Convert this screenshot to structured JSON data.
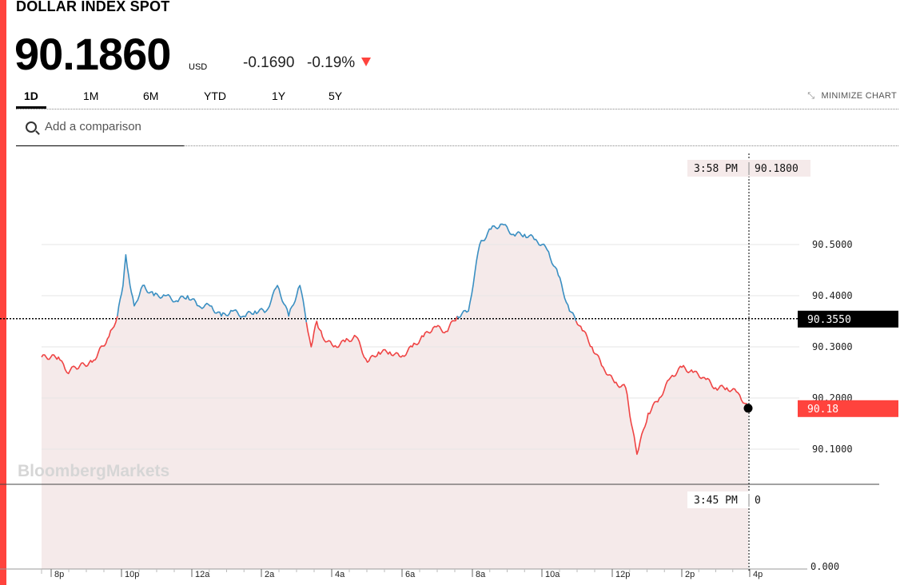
{
  "header": {
    "title": "DOLLAR INDEX SPOT",
    "price": "90.1860",
    "currency": "USD",
    "change": "-0.1690",
    "change_pct": "-0.19%",
    "accent": "#ff433d"
  },
  "tabs": [
    {
      "label": "1D",
      "active": true
    },
    {
      "label": "1M",
      "active": false
    },
    {
      "label": "6M",
      "active": false
    },
    {
      "label": "YTD",
      "active": false
    },
    {
      "label": "1Y",
      "active": false
    },
    {
      "label": "5Y",
      "active": false
    }
  ],
  "minimize": {
    "label": "MINIMIZE CHART",
    "icon": "minimize-arrows-icon"
  },
  "search": {
    "placeholder": "Add a comparison",
    "icon": "search-icon"
  },
  "watermark": "BloombergMarkets",
  "chart_data": {
    "type": "line",
    "title": "",
    "xlabel": "",
    "ylabel": "",
    "x_tick_labels": [
      "8p",
      "10p",
      "12a",
      "2a",
      "4a",
      "6a",
      "8a",
      "10a",
      "12p",
      "2p",
      "4p"
    ],
    "y_tick_labels": [
      "90.5000",
      "90.4000",
      "90.3000",
      "90.2000",
      "90.1000"
    ],
    "y_ticks": [
      90.5,
      90.4,
      90.3,
      90.2,
      90.1
    ],
    "ylim": [
      90.02,
      90.68
    ],
    "previous_close": 90.355,
    "previous_close_label": "90.3550",
    "last_value": 90.18,
    "last_value_label": "90.18",
    "crosshair": {
      "time_label": "3:58 PM",
      "value_label": "90.1800"
    },
    "volume_crosshair": {
      "time_label": "3:45 PM",
      "value_label": "0"
    },
    "volume_axis_label": "0.000",
    "colors": {
      "above": "#3a8fc2",
      "below": "#ef4444",
      "fill": "#f5eaea",
      "last_badge": "#ff433d"
    },
    "series": [
      {
        "x": [
          "7:00p",
          "7:30p",
          "7:45p",
          "8:00p",
          "8:30p",
          "9:00p",
          "9:15p",
          "9:25p",
          "9:30p",
          "9:35p",
          "9:45p",
          "10:00p",
          "10:20p",
          "10:40p",
          "11:00p",
          "11:20p",
          "11:40p",
          "12:00a",
          "12:20a",
          "12:40a",
          "1:00a",
          "1:20a",
          "1:40a",
          "2:00a",
          "2:20a",
          "2:40a",
          "3:00a",
          "3:10a",
          "3:20a",
          "3:40a",
          "4:00a",
          "4:20a",
          "4:40a",
          "5:00a",
          "5:20a",
          "5:40a",
          "6:00a",
          "6:20a",
          "6:40a",
          "7:00a",
          "7:20a",
          "7:40a",
          "8:00a",
          "8:20a",
          "8:40a",
          "9:00a",
          "9:20a",
          "9:40a",
          "10:00a",
          "10:20a",
          "10:40a",
          "11:00a",
          "11:20a",
          "11:40a",
          "12:00p",
          "12:20p",
          "12:30p",
          "12:40p",
          "1:00p",
          "1:20p",
          "1:40p",
          "2:00p",
          "2:20p",
          "2:40p",
          "3:00p",
          "3:20p",
          "3:40p",
          "3:58p"
        ],
        "values": [
          90.28,
          90.28,
          90.25,
          90.26,
          90.27,
          90.32,
          90.36,
          90.42,
          90.48,
          90.44,
          90.38,
          90.42,
          90.4,
          90.4,
          90.39,
          90.4,
          90.38,
          90.38,
          90.36,
          90.37,
          90.36,
          90.37,
          90.37,
          90.42,
          90.36,
          90.42,
          90.3,
          90.35,
          90.32,
          90.3,
          90.31,
          90.32,
          90.27,
          90.29,
          90.29,
          90.28,
          90.3,
          90.32,
          90.34,
          90.33,
          90.36,
          90.37,
          90.5,
          90.53,
          90.54,
          90.52,
          90.52,
          90.51,
          90.49,
          90.44,
          90.37,
          90.34,
          90.3,
          90.26,
          90.23,
          90.22,
          90.15,
          90.09,
          90.17,
          90.2,
          90.24,
          90.26,
          90.25,
          90.24,
          90.22,
          90.22,
          90.21,
          90.18
        ]
      }
    ]
  }
}
